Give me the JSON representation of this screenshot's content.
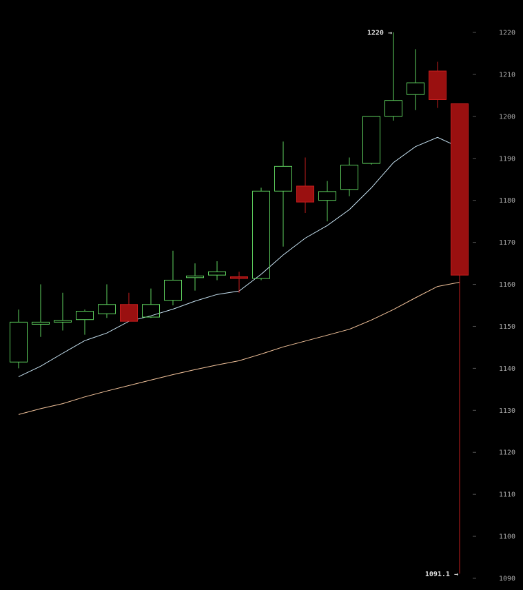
{
  "chart_data": {
    "type": "candlestick",
    "ylim": [
      1090,
      1220
    ],
    "y_ticks": [
      "1090",
      "1100",
      "1110",
      "1120",
      "1130",
      "1140",
      "1150",
      "1160",
      "1170",
      "1180",
      "1190",
      "1200",
      "1210",
      "1220"
    ],
    "high_annotation": {
      "value": 1220,
      "label": "1220 →"
    },
    "low_annotation": {
      "value": 1091.1,
      "label": "1091.1 →"
    },
    "colors": {
      "up": "#5fd35f",
      "down_fill": "#9a1010",
      "down_stroke": "#c81e1e",
      "tick_label": "#aaaaaa",
      "tick_mark": "#555555",
      "annotation": "#e0e0e0",
      "ma_fast": "#c8e4f4",
      "ma_slow": "#f4c49c"
    },
    "candles": [
      {
        "open": 1141.5,
        "high": 1154,
        "low": 1140,
        "close": 1151
      },
      {
        "open": 1150.5,
        "high": 1160,
        "low": 1147.5,
        "close": 1151
      },
      {
        "open": 1151,
        "high": 1158,
        "low": 1149,
        "close": 1151.4
      },
      {
        "open": 1151.6,
        "high": 1154,
        "low": 1148,
        "close": 1153.6
      },
      {
        "open": 1153,
        "high": 1160,
        "low": 1152,
        "close": 1155.2
      },
      {
        "open": 1155.2,
        "high": 1158,
        "low": 1151.5,
        "close": 1151.2
      },
      {
        "open": 1152.2,
        "high": 1159,
        "low": 1152,
        "close": 1155.2
      },
      {
        "open": 1156.2,
        "high": 1168,
        "low": 1155,
        "close": 1161
      },
      {
        "open": 1161.6,
        "high": 1165,
        "low": 1158.5,
        "close": 1162
      },
      {
        "open": 1162.2,
        "high": 1165.5,
        "low": 1161,
        "close": 1163
      },
      {
        "open": 1161.8,
        "high": 1163,
        "low": 1158,
        "close": 1161.4
      },
      {
        "open": 1161.4,
        "high": 1183,
        "low": 1161,
        "close": 1182.2
      },
      {
        "open": 1182.2,
        "high": 1194,
        "low": 1169,
        "close": 1188.1
      },
      {
        "open": 1183.4,
        "high": 1190.2,
        "low": 1177,
        "close": 1179.6
      },
      {
        "open": 1180,
        "high": 1184.6,
        "low": 1175,
        "close": 1182.1
      },
      {
        "open": 1182.6,
        "high": 1190.2,
        "low": 1181,
        "close": 1188.4
      },
      {
        "open": 1188.8,
        "high": 1200,
        "low": 1188.5,
        "close": 1200
      },
      {
        "open": 1200,
        "high": 1220,
        "low": 1199,
        "close": 1203.8
      },
      {
        "open": 1205.2,
        "high": 1216,
        "low": 1201.5,
        "close": 1208
      },
      {
        "open": 1210.8,
        "high": 1213,
        "low": 1202,
        "close": 1204
      },
      {
        "open": 1203,
        "high": 1203,
        "low": 1091.1,
        "close": 1162.2
      }
    ],
    "ma_fast": [
      1138,
      1140.5,
      1143.6,
      1146.6,
      1148.4,
      1151.2,
      1152.5,
      1154.1,
      1156,
      1157.6,
      1158.4,
      1162.4,
      1167,
      1171,
      1174,
      1177.8,
      1183,
      1189,
      1192.8,
      1195,
      1192.6
    ],
    "ma_slow": [
      1129,
      1130.4,
      1131.6,
      1133.2,
      1134.6,
      1135.9,
      1137.2,
      1138.5,
      1139.7,
      1140.8,
      1141.8,
      1143.4,
      1145.1,
      1146.5,
      1147.9,
      1149.3,
      1151.5,
      1154,
      1156.8,
      1159.5,
      1160.5
    ]
  }
}
